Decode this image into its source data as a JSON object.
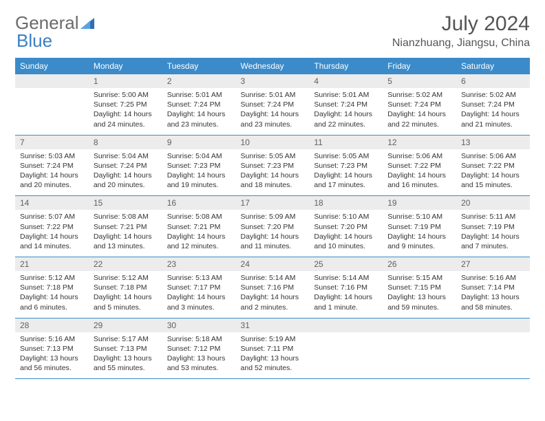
{
  "logo": {
    "text1": "General",
    "text2": "Blue"
  },
  "title": "July 2024",
  "location": "Nianzhuang, Jiangsu, China",
  "colors": {
    "header_bg": "#3b8bca",
    "header_text": "#ffffff",
    "daynum_bg": "#ececec",
    "daynum_text": "#606060",
    "border": "#3b8bca",
    "body_text": "#333333",
    "logo_gray": "#6b6b6b",
    "logo_blue": "#3a7fc4"
  },
  "weekdays": [
    "Sunday",
    "Monday",
    "Tuesday",
    "Wednesday",
    "Thursday",
    "Friday",
    "Saturday"
  ],
  "weeks": [
    [
      {
        "day": "",
        "lines": []
      },
      {
        "day": "1",
        "lines": [
          "Sunrise: 5:00 AM",
          "Sunset: 7:25 PM",
          "Daylight: 14 hours",
          "and 24 minutes."
        ]
      },
      {
        "day": "2",
        "lines": [
          "Sunrise: 5:01 AM",
          "Sunset: 7:24 PM",
          "Daylight: 14 hours",
          "and 23 minutes."
        ]
      },
      {
        "day": "3",
        "lines": [
          "Sunrise: 5:01 AM",
          "Sunset: 7:24 PM",
          "Daylight: 14 hours",
          "and 23 minutes."
        ]
      },
      {
        "day": "4",
        "lines": [
          "Sunrise: 5:01 AM",
          "Sunset: 7:24 PM",
          "Daylight: 14 hours",
          "and 22 minutes."
        ]
      },
      {
        "day": "5",
        "lines": [
          "Sunrise: 5:02 AM",
          "Sunset: 7:24 PM",
          "Daylight: 14 hours",
          "and 22 minutes."
        ]
      },
      {
        "day": "6",
        "lines": [
          "Sunrise: 5:02 AM",
          "Sunset: 7:24 PM",
          "Daylight: 14 hours",
          "and 21 minutes."
        ]
      }
    ],
    [
      {
        "day": "7",
        "lines": [
          "Sunrise: 5:03 AM",
          "Sunset: 7:24 PM",
          "Daylight: 14 hours",
          "and 20 minutes."
        ]
      },
      {
        "day": "8",
        "lines": [
          "Sunrise: 5:04 AM",
          "Sunset: 7:24 PM",
          "Daylight: 14 hours",
          "and 20 minutes."
        ]
      },
      {
        "day": "9",
        "lines": [
          "Sunrise: 5:04 AM",
          "Sunset: 7:23 PM",
          "Daylight: 14 hours",
          "and 19 minutes."
        ]
      },
      {
        "day": "10",
        "lines": [
          "Sunrise: 5:05 AM",
          "Sunset: 7:23 PM",
          "Daylight: 14 hours",
          "and 18 minutes."
        ]
      },
      {
        "day": "11",
        "lines": [
          "Sunrise: 5:05 AM",
          "Sunset: 7:23 PM",
          "Daylight: 14 hours",
          "and 17 minutes."
        ]
      },
      {
        "day": "12",
        "lines": [
          "Sunrise: 5:06 AM",
          "Sunset: 7:22 PM",
          "Daylight: 14 hours",
          "and 16 minutes."
        ]
      },
      {
        "day": "13",
        "lines": [
          "Sunrise: 5:06 AM",
          "Sunset: 7:22 PM",
          "Daylight: 14 hours",
          "and 15 minutes."
        ]
      }
    ],
    [
      {
        "day": "14",
        "lines": [
          "Sunrise: 5:07 AM",
          "Sunset: 7:22 PM",
          "Daylight: 14 hours",
          "and 14 minutes."
        ]
      },
      {
        "day": "15",
        "lines": [
          "Sunrise: 5:08 AM",
          "Sunset: 7:21 PM",
          "Daylight: 14 hours",
          "and 13 minutes."
        ]
      },
      {
        "day": "16",
        "lines": [
          "Sunrise: 5:08 AM",
          "Sunset: 7:21 PM",
          "Daylight: 14 hours",
          "and 12 minutes."
        ]
      },
      {
        "day": "17",
        "lines": [
          "Sunrise: 5:09 AM",
          "Sunset: 7:20 PM",
          "Daylight: 14 hours",
          "and 11 minutes."
        ]
      },
      {
        "day": "18",
        "lines": [
          "Sunrise: 5:10 AM",
          "Sunset: 7:20 PM",
          "Daylight: 14 hours",
          "and 10 minutes."
        ]
      },
      {
        "day": "19",
        "lines": [
          "Sunrise: 5:10 AM",
          "Sunset: 7:19 PM",
          "Daylight: 14 hours",
          "and 9 minutes."
        ]
      },
      {
        "day": "20",
        "lines": [
          "Sunrise: 5:11 AM",
          "Sunset: 7:19 PM",
          "Daylight: 14 hours",
          "and 7 minutes."
        ]
      }
    ],
    [
      {
        "day": "21",
        "lines": [
          "Sunrise: 5:12 AM",
          "Sunset: 7:18 PM",
          "Daylight: 14 hours",
          "and 6 minutes."
        ]
      },
      {
        "day": "22",
        "lines": [
          "Sunrise: 5:12 AM",
          "Sunset: 7:18 PM",
          "Daylight: 14 hours",
          "and 5 minutes."
        ]
      },
      {
        "day": "23",
        "lines": [
          "Sunrise: 5:13 AM",
          "Sunset: 7:17 PM",
          "Daylight: 14 hours",
          "and 3 minutes."
        ]
      },
      {
        "day": "24",
        "lines": [
          "Sunrise: 5:14 AM",
          "Sunset: 7:16 PM",
          "Daylight: 14 hours",
          "and 2 minutes."
        ]
      },
      {
        "day": "25",
        "lines": [
          "Sunrise: 5:14 AM",
          "Sunset: 7:16 PM",
          "Daylight: 14 hours",
          "and 1 minute."
        ]
      },
      {
        "day": "26",
        "lines": [
          "Sunrise: 5:15 AM",
          "Sunset: 7:15 PM",
          "Daylight: 13 hours",
          "and 59 minutes."
        ]
      },
      {
        "day": "27",
        "lines": [
          "Sunrise: 5:16 AM",
          "Sunset: 7:14 PM",
          "Daylight: 13 hours",
          "and 58 minutes."
        ]
      }
    ],
    [
      {
        "day": "28",
        "lines": [
          "Sunrise: 5:16 AM",
          "Sunset: 7:13 PM",
          "Daylight: 13 hours",
          "and 56 minutes."
        ]
      },
      {
        "day": "29",
        "lines": [
          "Sunrise: 5:17 AM",
          "Sunset: 7:13 PM",
          "Daylight: 13 hours",
          "and 55 minutes."
        ]
      },
      {
        "day": "30",
        "lines": [
          "Sunrise: 5:18 AM",
          "Sunset: 7:12 PM",
          "Daylight: 13 hours",
          "and 53 minutes."
        ]
      },
      {
        "day": "31",
        "lines": [
          "Sunrise: 5:19 AM",
          "Sunset: 7:11 PM",
          "Daylight: 13 hours",
          "and 52 minutes."
        ]
      },
      {
        "day": "",
        "lines": []
      },
      {
        "day": "",
        "lines": []
      },
      {
        "day": "",
        "lines": []
      }
    ]
  ]
}
